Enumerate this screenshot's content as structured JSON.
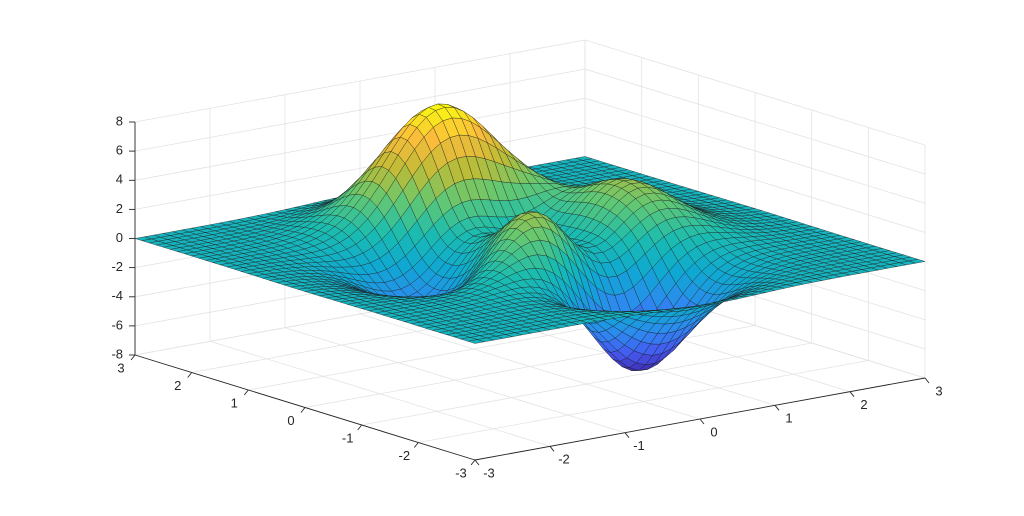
{
  "chart_data": {
    "type": "surface",
    "function": "peaks",
    "title": "",
    "xlabel": "",
    "ylabel": "",
    "zlabel": "",
    "xlim": [
      -3,
      3
    ],
    "ylim": [
      -3,
      3
    ],
    "zlim": [
      -8,
      8
    ],
    "x_ticks": [
      -3,
      -2,
      -1,
      0,
      1,
      2,
      3
    ],
    "y_ticks": [
      -3,
      -2,
      -1,
      0,
      1,
      2,
      3
    ],
    "z_ticks": [
      -8,
      -6,
      -4,
      -2,
      0,
      2,
      4,
      6,
      8
    ],
    "x_tick_labels": [
      "-3",
      "-2",
      "-1",
      "0",
      "1",
      "2",
      "3"
    ],
    "y_tick_labels": [
      "-3",
      "-2",
      "-1",
      "0",
      "1",
      "2",
      "3"
    ],
    "z_tick_labels": [
      "-8",
      "-6",
      "-4",
      "-2",
      "0",
      "2",
      "4",
      "6",
      "8"
    ],
    "grid": true,
    "colormap": "parula",
    "colormap_stops": [
      "#3e26a8",
      "#4658f0",
      "#2d8af0",
      "#0fa8d2",
      "#1bbcaf",
      "#62c873",
      "#bebc36",
      "#fbbc3c",
      "#f9fb0e"
    ],
    "edge_color": "#1a1a1a",
    "axis_color": "#262626",
    "grid_color": "#e3e3e3",
    "z_max": 8.1,
    "z_min": -6.55
  }
}
